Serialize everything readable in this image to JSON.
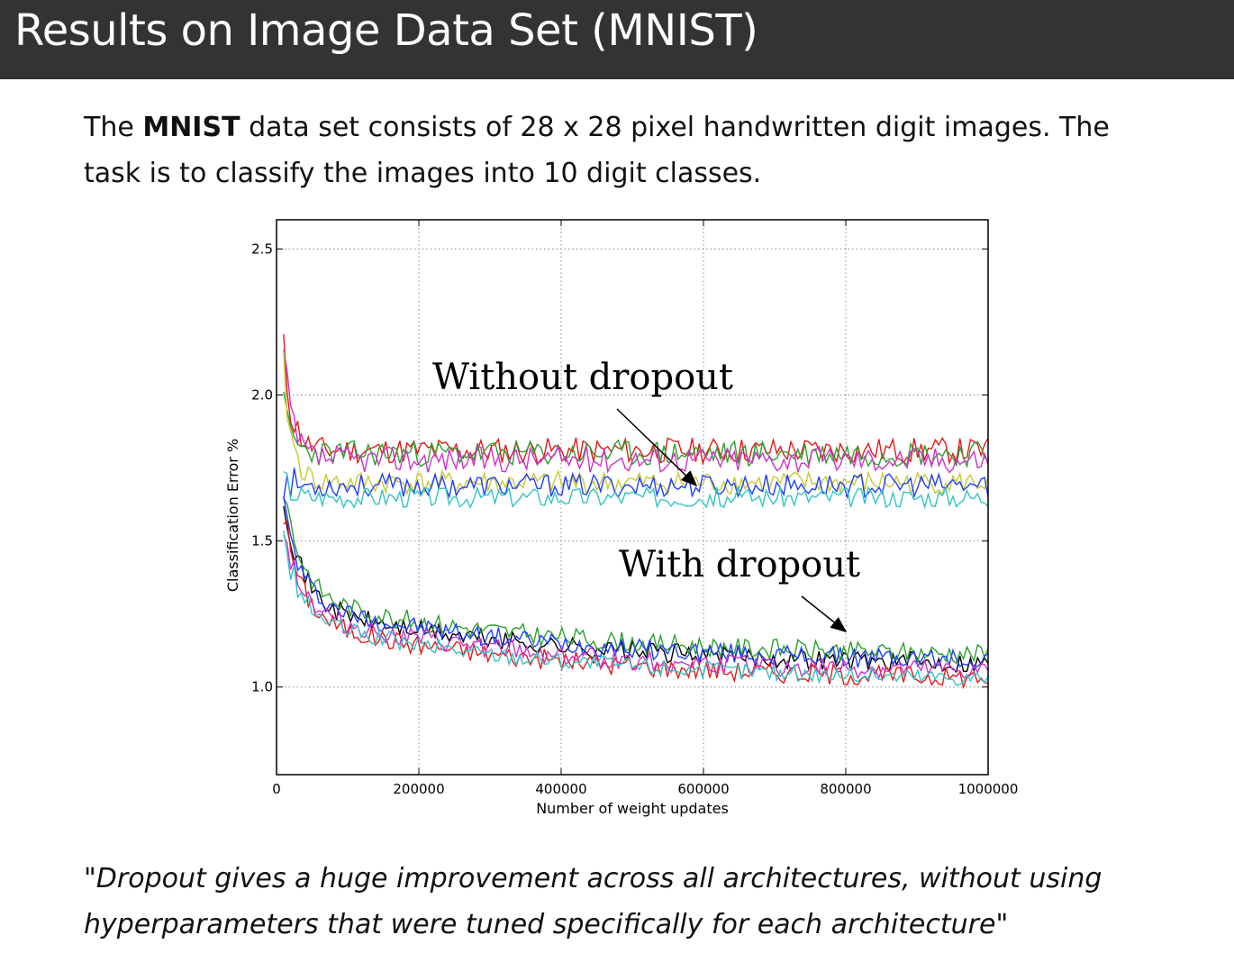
{
  "slide": {
    "title": "Results on Image Data Set (MNIST)",
    "intro_lead": "The ",
    "intro_bold": "MNIST",
    "intro_rest": " data set consists of 28 x 28 pixel handwritten digit images. The task is to classify the images into 10 digit classes.",
    "quote": "\"Dropout gives a huge improvement across all architectures, without using hyperparameters that were tuned specifically for each architecture\""
  },
  "chart_data": {
    "type": "line",
    "title": "",
    "xlabel": "Number of weight updates",
    "ylabel": "Classification Error %",
    "xlim": [
      0,
      1000000
    ],
    "ylim": [
      0.7,
      2.6
    ],
    "xticks": [
      0,
      200000,
      400000,
      600000,
      800000,
      1000000
    ],
    "yticks": [
      1.0,
      1.5,
      2.0,
      2.5
    ],
    "ytick_labels": [
      "1.0",
      "1.5",
      "2.0",
      "2.5"
    ],
    "grid": true,
    "annotations": [
      {
        "text": "Without dropout",
        "arrow_to": [
          590000,
          1.69
        ]
      },
      {
        "text": "With dropout",
        "arrow_to": [
          800000,
          1.19
        ]
      }
    ],
    "series": [
      {
        "group": "without-dropout",
        "color": "#e41a1c",
        "start": 2.6,
        "plateau": 1.81,
        "noise": 0.045,
        "seed": 11
      },
      {
        "group": "without-dropout",
        "color": "#2ca02c",
        "start": 2.15,
        "plateau": 1.8,
        "noise": 0.045,
        "seed": 23
      },
      {
        "group": "without-dropout",
        "color": "#cc33cc",
        "start": 2.6,
        "plateau": 1.78,
        "noise": 0.045,
        "seed": 37
      },
      {
        "group": "without-dropout",
        "color": "#c8c832",
        "start": 2.6,
        "plateau": 1.7,
        "noise": 0.04,
        "seed": 41
      },
      {
        "group": "without-dropout",
        "color": "#1f3fff",
        "start": 1.72,
        "plateau": 1.69,
        "noise": 0.04,
        "seed": 53
      },
      {
        "group": "without-dropout",
        "color": "#33c3c3",
        "start": 1.8,
        "plateau": 1.65,
        "noise": 0.035,
        "seed": 67
      },
      {
        "group": "with-dropout",
        "color": "#000000",
        "start": 1.87,
        "plateau": 1.07,
        "noise": 0.035,
        "seed": 71
      },
      {
        "group": "with-dropout",
        "color": "#2ca02c",
        "start": 1.86,
        "plateau": 1.1,
        "noise": 0.035,
        "seed": 83
      },
      {
        "group": "with-dropout",
        "color": "#1f3fff",
        "start": 1.79,
        "plateau": 1.08,
        "noise": 0.035,
        "seed": 97
      },
      {
        "group": "with-dropout",
        "color": "#e41a1c",
        "start": 1.84,
        "plateau": 1.02,
        "noise": 0.035,
        "seed": 101
      },
      {
        "group": "with-dropout",
        "color": "#cc33cc",
        "start": 1.75,
        "plateau": 1.04,
        "noise": 0.035,
        "seed": 113
      },
      {
        "group": "with-dropout",
        "color": "#33c3c3",
        "start": 1.7,
        "plateau": 1.02,
        "noise": 0.03,
        "seed": 127
      }
    ]
  }
}
